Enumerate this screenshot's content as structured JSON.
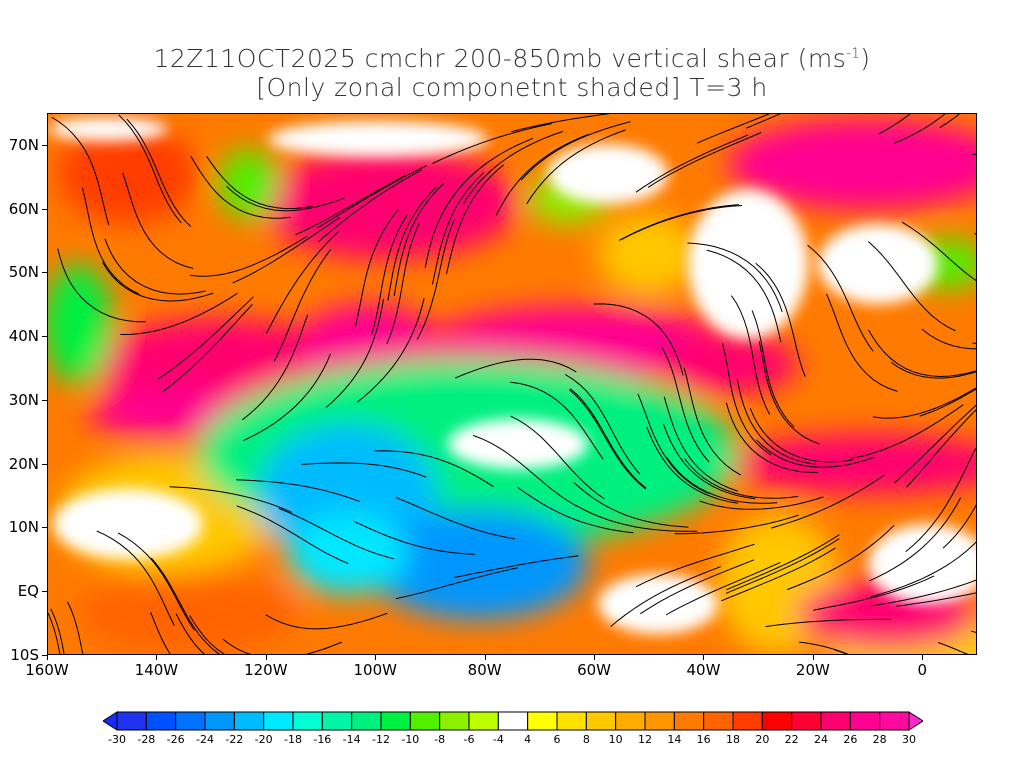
{
  "title": {
    "line1_pre": "12Z11OCT2025 cmchr 200-850mb vertical shear (ms",
    "line1_sup": "-1",
    "line1_post": ")",
    "line2": "[Only zonal componetnt shaded] T=3 h"
  },
  "axes": {
    "lon_labels": [
      "160W",
      "140W",
      "120W",
      "100W",
      "80W",
      "60W",
      "40W",
      "20W",
      "0"
    ],
    "lat_labels": [
      "70N",
      "60N",
      "50N",
      "40N",
      "30N",
      "20N",
      "10N",
      "EQ",
      "10S"
    ],
    "lon_range": [
      -160,
      10
    ],
    "lat_range": [
      -10,
      75
    ]
  },
  "colorbar": {
    "labels": [
      "-30",
      "-28",
      "-26",
      "-24",
      "-22",
      "-20",
      "-18",
      "-16",
      "-14",
      "-12",
      "-10",
      "-8",
      "-6",
      "-4",
      "4",
      "6",
      "8",
      "10",
      "12",
      "14",
      "16",
      "18",
      "20",
      "22",
      "24",
      "26",
      "28",
      "30"
    ],
    "colors": [
      "#1e32f0",
      "#0050ff",
      "#0072ff",
      "#0096ff",
      "#00bcff",
      "#00e8ff",
      "#00ffd4",
      "#00f5a6",
      "#00f080",
      "#00f040",
      "#50f000",
      "#8cf000",
      "#beff00",
      "#ffffff",
      "#ffff00",
      "#ffe100",
      "#ffc800",
      "#ffab00",
      "#ff9600",
      "#ff7a00",
      "#ff6400",
      "#ff3c00",
      "#ff0000",
      "#ff0032",
      "#ff0070",
      "#ff0090",
      "#ff0aa0"
    ],
    "under_color": "#1a2aff",
    "over_color": "#ff28d0"
  }
}
